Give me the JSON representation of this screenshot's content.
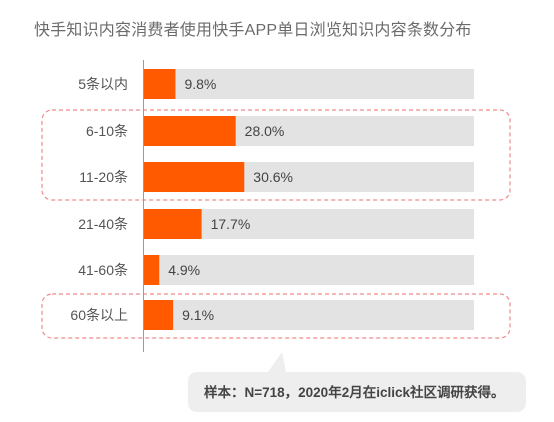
{
  "chart_data": {
    "type": "bar",
    "orientation": "horizontal",
    "title": "快手知识内容消费者使用快手APP单日浏览知识内容条数分布",
    "categories": [
      "5条以内",
      "6-10条",
      "11-20条",
      "21-40条",
      "41-60条",
      "60条以上"
    ],
    "values": [
      9.8,
      28.0,
      30.6,
      17.7,
      4.9,
      9.1
    ],
    "value_labels": [
      "9.8%",
      "28.0%",
      "30.6%",
      "17.7%",
      "4.9%",
      "9.1%"
    ],
    "xlim": [
      0,
      100
    ],
    "unit": "%",
    "highlight_groups": [
      [
        "6-10条",
        "11-20条"
      ],
      [
        "60条以上"
      ]
    ],
    "grid": false,
    "legend": "none",
    "annotation": "样本：N=718，2020年2月在iclick社区调研获得。"
  },
  "colors": {
    "bar": "#ff5a00",
    "track": "#e3e3e3",
    "highlight_border": "#f08a8a",
    "axis": "#9a9a9a",
    "note_bg": "#eeeeee"
  }
}
